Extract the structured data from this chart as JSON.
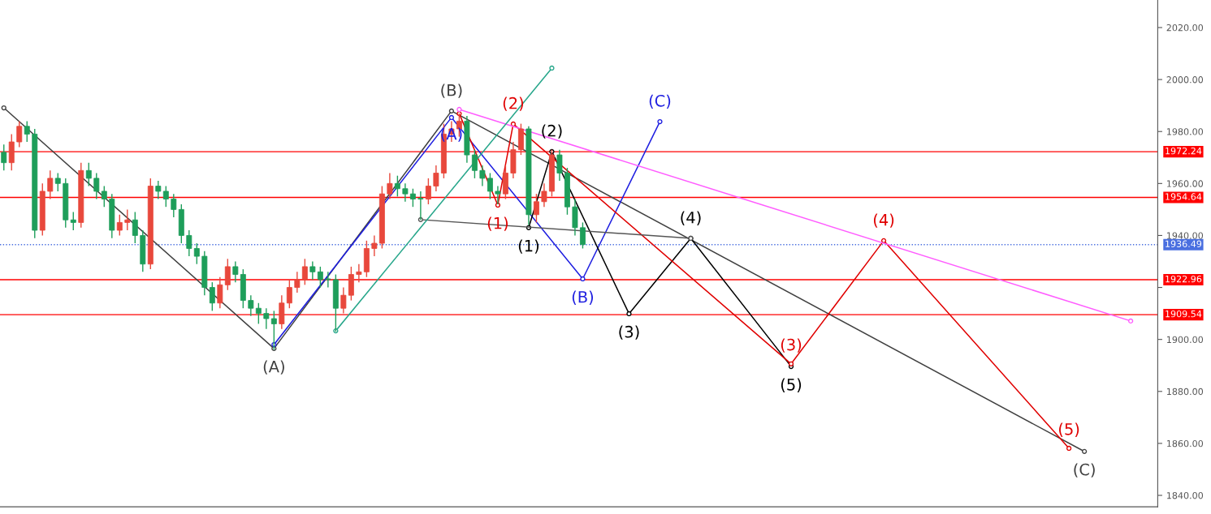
{
  "chart_data": {
    "type": "candlestick",
    "categories": [
      null,
      null,
      null,
      null,
      null,
      null,
      null,
      null,
      null,
      null,
      null,
      null,
      null,
      null,
      null,
      null,
      null,
      null,
      null,
      null,
      null,
      null,
      null,
      null,
      null,
      null,
      null,
      null,
      null,
      null,
      null,
      null,
      null,
      null,
      null,
      null,
      null,
      null,
      null,
      null,
      null,
      null,
      null,
      null,
      null,
      null,
      null,
      null,
      null,
      null,
      null,
      null,
      null,
      null,
      null,
      null,
      null,
      null,
      null,
      null,
      null,
      null,
      null,
      null,
      null,
      null,
      null,
      null,
      null,
      null,
      null,
      null,
      null,
      null,
      null,
      null,
      null,
      null,
      null,
      null,
      null,
      null,
      null,
      null,
      null,
      null,
      null,
      null,
      null,
      null,
      null,
      null,
      null,
      null,
      null,
      null,
      null,
      null,
      null,
      null,
      null,
      null,
      null,
      null,
      null,
      null,
      null,
      null,
      null,
      null,
      null,
      null,
      null,
      null,
      null,
      null,
      null,
      null,
      null,
      null,
      null,
      null,
      null,
      null,
      null,
      null,
      null,
      null,
      null,
      null,
      null,
      null,
      null,
      null,
      null,
      null,
      null,
      null,
      null,
      null,
      null,
      null,
      null,
      null,
      null,
      null,
      null,
      null,
      null,
      null
    ],
    "ohlc": [
      [
        1972,
        1975,
        1965,
        1968
      ],
      [
        1968,
        1979,
        1965,
        1976
      ],
      [
        1976,
        1984,
        1974,
        1982
      ],
      [
        1982,
        1984,
        1976,
        1979
      ],
      [
        1979,
        1981,
        1939,
        1942
      ],
      [
        1942,
        1960,
        1940,
        1957
      ],
      [
        1957,
        1965,
        1954,
        1962
      ],
      [
        1962,
        1964,
        1957,
        1960
      ],
      [
        1960,
        1962,
        1943,
        1946
      ],
      [
        1946,
        1949,
        1942,
        1945
      ],
      [
        1945,
        1968,
        1943,
        1965
      ],
      [
        1965,
        1968,
        1959,
        1962
      ],
      [
        1962,
        1964,
        1954,
        1957
      ],
      [
        1957,
        1959,
        1951,
        1954
      ],
      [
        1954,
        1956,
        1939,
        1942
      ],
      [
        1942,
        1948,
        1940,
        1945
      ],
      [
        1945,
        1950,
        1942,
        1946
      ],
      [
        1946,
        1949,
        1937,
        1940
      ],
      [
        1940,
        1942,
        1926,
        1929
      ],
      [
        1929,
        1962,
        1927,
        1959
      ],
      [
        1959,
        1961,
        1954,
        1957
      ],
      [
        1957,
        1959,
        1951,
        1954
      ],
      [
        1954,
        1956,
        1947,
        1950
      ],
      [
        1950,
        1952,
        1937,
        1940
      ],
      [
        1940,
        1942,
        1932,
        1935
      ],
      [
        1935,
        1937,
        1929,
        1932
      ],
      [
        1932,
        1934,
        1917,
        1920
      ],
      [
        1920,
        1922,
        1911,
        1914
      ],
      [
        1914,
        1924,
        1912,
        1921
      ],
      [
        1921,
        1931,
        1919,
        1928
      ],
      [
        1928,
        1930,
        1922,
        1925
      ],
      [
        1925,
        1927,
        1912,
        1915
      ],
      [
        1915,
        1917,
        1909,
        1912
      ],
      [
        1912,
        1914,
        1906,
        1910
      ],
      [
        1910,
        1912,
        1904,
        1908
      ],
      [
        1908,
        1911,
        1896,
        1906
      ],
      [
        1906,
        1917,
        1904,
        1914
      ],
      [
        1914,
        1923,
        1912,
        1920
      ],
      [
        1920,
        1926,
        1918,
        1923
      ],
      [
        1923,
        1931,
        1921,
        1928
      ],
      [
        1928,
        1930,
        1923,
        1926
      ],
      [
        1926,
        1928,
        1920,
        1923
      ],
      [
        1923,
        1926,
        1920,
        1923
      ],
      [
        1923,
        1925,
        1903,
        1912
      ],
      [
        1912,
        1920,
        1910,
        1917
      ],
      [
        1917,
        1928,
        1915,
        1925
      ],
      [
        1925,
        1929,
        1922,
        1926
      ],
      [
        1926,
        1938,
        1924,
        1935
      ],
      [
        1935,
        1940,
        1932,
        1937
      ],
      [
        1937,
        1959,
        1935,
        1956
      ],
      [
        1956,
        1964,
        1954,
        1960
      ],
      [
        1960,
        1963,
        1955,
        1958
      ],
      [
        1958,
        1960,
        1953,
        1956
      ],
      [
        1956,
        1958,
        1951,
        1954
      ],
      [
        1954,
        1957,
        1946,
        1954
      ],
      [
        1954,
        1962,
        1952,
        1959
      ],
      [
        1959,
        1967,
        1957,
        1964
      ],
      [
        1964,
        1983,
        1962,
        1979
      ],
      [
        1979,
        1984,
        1976,
        1981
      ],
      [
        1981,
        1987,
        1978,
        1984
      ],
      [
        1984,
        1986,
        1968,
        1971
      ],
      [
        1971,
        1973,
        1962,
        1965
      ],
      [
        1965,
        1967,
        1959,
        1962
      ],
      [
        1962,
        1964,
        1954,
        1957
      ],
      [
        1957,
        1959,
        1952,
        1956
      ],
      [
        1956,
        1967,
        1954,
        1964
      ],
      [
        1964,
        1976,
        1962,
        1973
      ],
      [
        1973,
        1983,
        1971,
        1981
      ],
      [
        1981,
        1982,
        1944,
        1948
      ],
      [
        1948,
        1956,
        1945,
        1953
      ],
      [
        1953,
        1960,
        1951,
        1957
      ],
      [
        1957,
        1973,
        1955,
        1971
      ],
      [
        1971,
        1973,
        1961,
        1964
      ],
      [
        1964,
        1966,
        1948,
        1951
      ],
      [
        1951,
        1954,
        1940,
        1943
      ],
      [
        1943,
        1945,
        1935,
        1936.5
      ],
      null,
      null,
      null,
      null,
      null,
      null,
      null,
      null,
      null,
      null,
      null,
      null,
      null,
      null,
      null,
      null,
      null,
      null,
      null,
      null,
      null,
      null,
      null,
      null,
      null,
      null,
      null,
      null,
      null,
      null,
      null,
      null,
      null,
      null,
      null,
      null,
      null,
      null,
      null,
      null,
      null,
      null,
      null,
      null,
      null,
      null,
      null,
      null,
      null,
      null,
      null,
      null,
      null,
      null,
      null,
      null,
      null,
      null,
      null,
      null,
      null,
      null,
      null,
      null,
      null,
      null,
      null,
      null,
      null,
      null,
      null,
      null,
      null,
      null
    ],
    "colors": [
      "#1e9e5a",
      "#e8483c",
      "#e8483c",
      "#1e9e5a",
      "#1e9e5a",
      "#e8483c",
      "#e8483c",
      "#1e9e5a",
      "#1e9e5a",
      "#1e9e5a",
      "#e8483c",
      "#1e9e5a",
      "#1e9e5a",
      "#1e9e5a",
      "#1e9e5a",
      "#e8483c",
      "#e8483c",
      "#1e9e5a",
      "#1e9e5a",
      "#e8483c",
      "#1e9e5a",
      "#1e9e5a",
      "#1e9e5a",
      "#1e9e5a",
      "#1e9e5a",
      "#1e9e5a",
      "#1e9e5a",
      "#1e9e5a",
      "#e8483c",
      "#e8483c",
      "#1e9e5a",
      "#1e9e5a",
      "#1e9e5a",
      "#1e9e5a",
      "#1e9e5a",
      "#1e9e5a",
      "#e8483c",
      "#e8483c",
      "#e8483c",
      "#e8483c",
      "#1e9e5a",
      "#1e9e5a",
      "#1e9e5a",
      "#1e9e5a",
      "#e8483c",
      "#e8483c",
      "#e8483c",
      "#e8483c",
      "#e8483c",
      "#e8483c",
      "#e8483c",
      "#1e9e5a",
      "#1e9e5a",
      "#1e9e5a",
      "#1e9e5a",
      "#e8483c",
      "#e8483c",
      "#e8483c",
      "#e8483c",
      "#e8483c",
      "#1e9e5a",
      "#1e9e5a",
      "#1e9e5a",
      "#1e9e5a",
      "#1e9e5a",
      "#e8483c",
      "#e8483c",
      "#e8483c",
      "#1e9e5a",
      "#e8483c",
      "#e8483c",
      "#e8483c",
      "#1e9e5a",
      "#1e9e5a",
      "#1e9e5a",
      "#1e9e5a",
      null,
      null,
      null,
      null,
      null,
      null,
      null,
      null,
      null,
      null,
      null,
      null,
      null,
      null,
      null,
      null,
      null,
      null,
      null,
      null,
      null,
      null,
      null,
      null,
      null,
      null,
      null,
      null,
      null,
      null,
      null,
      null,
      null,
      null,
      null,
      null,
      null,
      null,
      null,
      null,
      null,
      null,
      null,
      null,
      null,
      null,
      null,
      null,
      null,
      null,
      null,
      null,
      null,
      null,
      null,
      null,
      null,
      null,
      null,
      null,
      null,
      null,
      null,
      null,
      null,
      null,
      null,
      null,
      null,
      null,
      null,
      null,
      null,
      null
    ],
    "series": [
      {
        "type": "line",
        "color": "#404040",
        "values": [
          1989.1,
          null,
          null,
          null,
          null,
          null,
          null,
          null,
          null,
          null,
          null,
          null,
          null,
          null,
          null,
          null,
          null,
          null,
          null,
          null,
          null,
          null,
          null,
          null,
          null,
          null,
          null,
          null,
          null,
          null,
          null,
          null,
          null,
          null,
          null,
          1896.5,
          null,
          null,
          null,
          null,
          null,
          null,
          null,
          null,
          null,
          null,
          null,
          null,
          null,
          null,
          null,
          null,
          null,
          null,
          null,
          null,
          null,
          null,
          1987.9,
          null,
          null,
          null,
          null,
          null,
          null,
          null,
          null,
          null,
          null,
          null,
          null,
          null,
          null,
          null,
          null,
          null,
          null,
          null,
          null,
          null,
          null,
          null,
          null,
          null,
          null,
          null,
          null,
          null,
          null,
          null,
          null,
          null,
          null,
          null,
          null,
          null,
          null,
          null,
          null,
          null,
          null,
          null,
          null,
          null,
          null,
          null,
          null,
          null,
          null,
          null,
          null,
          null,
          null,
          null,
          null,
          null,
          null,
          null,
          null,
          null,
          null,
          null,
          null,
          null,
          null,
          null,
          null,
          null,
          null,
          null,
          null,
          null,
          null,
          null,
          null,
          null,
          null,
          null,
          null,
          null,
          1856.9,
          null,
          null,
          null,
          null,
          null,
          null,
          null,
          null,
          null
        ]
      },
      {
        "type": "line",
        "color": "#1f1fe0",
        "values": [
          null,
          null,
          null,
          null,
          null,
          null,
          null,
          null,
          null,
          null,
          null,
          null,
          null,
          null,
          null,
          null,
          null,
          null,
          null,
          null,
          null,
          null,
          null,
          null,
          null,
          null,
          null,
          null,
          null,
          null,
          null,
          null,
          null,
          null,
          null,
          1898.0,
          null,
          null,
          null,
          null,
          null,
          null,
          null,
          null,
          null,
          null,
          null,
          null,
          null,
          null,
          null,
          null,
          null,
          null,
          null,
          null,
          null,
          null,
          1985.4,
          null,
          null,
          null,
          null,
          null,
          null,
          null,
          null,
          null,
          null,
          null,
          null,
          null,
          null,
          null,
          null,
          1923.3,
          null,
          null,
          null,
          null,
          null,
          null,
          null,
          null,
          null,
          1983.8,
          null,
          null,
          null,
          null,
          null,
          null,
          null,
          null,
          null,
          null,
          null,
          null,
          null,
          null,
          null,
          null,
          null,
          null,
          null,
          null,
          null,
          null,
          null,
          null,
          null,
          null,
          null,
          null,
          null,
          null,
          null,
          null,
          null,
          null,
          null,
          null,
          null,
          null,
          null,
          null,
          null,
          null,
          null,
          null,
          null,
          null,
          null,
          null,
          null,
          null,
          null,
          null,
          null,
          null,
          null,
          null,
          null,
          null,
          null,
          null,
          null,
          null,
          null,
          null
        ]
      },
      {
        "type": "line",
        "color": "#000000",
        "values": [
          null,
          null,
          null,
          null,
          null,
          null,
          null,
          null,
          null,
          null,
          null,
          null,
          null,
          null,
          null,
          null,
          null,
          null,
          null,
          null,
          null,
          null,
          null,
          null,
          null,
          null,
          null,
          null,
          null,
          null,
          null,
          null,
          null,
          null,
          null,
          null,
          null,
          null,
          null,
          null,
          null,
          null,
          null,
          null,
          null,
          null,
          null,
          null,
          null,
          null,
          null,
          null,
          null,
          null,
          null,
          null,
          null,
          null,
          null,
          null,
          null,
          null,
          null,
          null,
          null,
          null,
          null,
          null,
          1943.0,
          null,
          null,
          1972.3,
          null,
          null,
          null,
          null,
          null,
          null,
          null,
          null,
          null,
          1909.9,
          null,
          null,
          null,
          null,
          null,
          null,
          null,
          1938.9,
          null,
          null,
          null,
          null,
          null,
          null,
          null,
          null,
          null,
          null,
          null,
          null,
          1889.6,
          null,
          null,
          null,
          null,
          null,
          null,
          null,
          null,
          null,
          null,
          null,
          null,
          null,
          null,
          null,
          null,
          null,
          null,
          null,
          null,
          null,
          null,
          null,
          null,
          null,
          null,
          null,
          null,
          null,
          null,
          null,
          null,
          null,
          null,
          null,
          null,
          null,
          null,
          null,
          null,
          null,
          null,
          null,
          null,
          null,
          null,
          null
        ]
      },
      {
        "type": "line",
        "color": "#e00000",
        "values": [
          null,
          null,
          null,
          null,
          null,
          null,
          null,
          null,
          null,
          null,
          null,
          null,
          null,
          null,
          null,
          null,
          null,
          null,
          null,
          null,
          null,
          null,
          null,
          null,
          null,
          null,
          null,
          null,
          null,
          null,
          null,
          null,
          null,
          null,
          null,
          null,
          null,
          null,
          null,
          null,
          null,
          null,
          null,
          null,
          null,
          null,
          null,
          null,
          null,
          null,
          null,
          null,
          null,
          null,
          null,
          null,
          null,
          null,
          null,
          1986.9,
          null,
          null,
          null,
          null,
          1951.7,
          null,
          1982.9,
          null,
          null,
          null,
          null,
          null,
          null,
          null,
          null,
          null,
          null,
          null,
          null,
          null,
          null,
          null,
          null,
          null,
          null,
          null,
          null,
          null,
          null,
          null,
          null,
          null,
          null,
          null,
          null,
          null,
          null,
          null,
          null,
          null,
          null,
          null,
          1890.6,
          null,
          null,
          null,
          null,
          null,
          null,
          null,
          null,
          null,
          null,
          null,
          1938.0,
          null,
          null,
          null,
          null,
          null,
          null,
          null,
          null,
          null,
          null,
          null,
          null,
          null,
          null,
          null,
          null,
          null,
          null,
          null,
          null,
          null,
          null,
          null,
          1858.1,
          null,
          null,
          null,
          null,
          null,
          null,
          null,
          null,
          null,
          null,
          null
        ]
      },
      {
        "type": "line",
        "color": "#ff5cff",
        "values": [
          null,
          null,
          null,
          null,
          null,
          null,
          null,
          null,
          null,
          null,
          null,
          null,
          null,
          null,
          null,
          null,
          null,
          null,
          null,
          null,
          null,
          null,
          null,
          null,
          null,
          null,
          null,
          null,
          null,
          null,
          null,
          null,
          null,
          null,
          null,
          null,
          null,
          null,
          null,
          null,
          null,
          null,
          null,
          null,
          null,
          null,
          null,
          null,
          null,
          null,
          null,
          null,
          null,
          null,
          null,
          null,
          null,
          null,
          null,
          1988.5,
          null,
          null,
          null,
          null,
          null,
          null,
          null,
          null,
          null,
          null,
          null,
          null,
          null,
          null,
          null,
          null,
          null,
          null,
          null,
          null,
          null,
          null,
          null,
          null,
          null,
          null,
          null,
          null,
          null,
          null,
          null,
          null,
          null,
          null,
          null,
          null,
          null,
          null,
          null,
          null,
          null,
          null,
          null,
          null,
          null,
          null,
          null,
          null,
          null,
          null,
          null,
          null,
          null,
          null,
          null,
          null,
          null,
          null,
          null,
          null,
          null,
          null,
          null,
          null,
          null,
          null,
          null,
          null,
          null,
          null,
          null,
          null,
          null,
          null,
          null,
          null,
          null,
          null,
          null,
          null,
          null,
          null,
          null,
          null,
          null,
          null,
          1907.1,
          null,
          null,
          null
        ]
      },
      {
        "type": "line",
        "color": "#555555",
        "values": [
          null,
          null,
          null,
          null,
          null,
          null,
          null,
          null,
          null,
          null,
          null,
          null,
          null,
          null,
          null,
          null,
          null,
          null,
          null,
          null,
          null,
          null,
          null,
          null,
          null,
          null,
          null,
          null,
          null,
          null,
          null,
          null,
          null,
          null,
          null,
          null,
          null,
          null,
          null,
          null,
          null,
          null,
          null,
          null,
          null,
          null,
          null,
          null,
          null,
          null,
          null,
          null,
          null,
          null,
          1946.1,
          null,
          null,
          null,
          null,
          null,
          null,
          null,
          null,
          null,
          null,
          null,
          null,
          null,
          null,
          null,
          null,
          null,
          null,
          null,
          null,
          null,
          null,
          null,
          null,
          null,
          null,
          null,
          null,
          null,
          null,
          null,
          null,
          null,
          null,
          1938.9,
          null,
          null,
          null,
          null,
          null,
          null,
          null,
          null,
          null,
          null,
          null,
          null,
          null,
          null,
          null,
          null,
          null,
          null,
          null,
          null,
          null,
          null,
          null,
          null,
          null,
          null,
          null,
          null,
          null,
          null,
          null,
          null,
          null,
          null,
          null,
          null,
          null,
          null,
          null,
          null,
          null,
          null,
          null,
          null,
          null,
          null,
          null,
          null,
          null,
          null,
          null,
          null,
          null,
          null,
          null,
          null,
          null,
          null,
          null,
          null
        ]
      },
      {
        "type": "line",
        "color": "#26a68a",
        "values": [
          null,
          null,
          null,
          null,
          null,
          null,
          null,
          null,
          null,
          null,
          null,
          null,
          null,
          null,
          null,
          null,
          null,
          null,
          null,
          null,
          null,
          null,
          null,
          null,
          null,
          null,
          null,
          null,
          null,
          null,
          null,
          null,
          null,
          null,
          null,
          null,
          null,
          null,
          null,
          null,
          null,
          null,
          null,
          1903.3,
          null,
          null,
          null,
          null,
          null,
          null,
          null,
          null,
          null,
          null,
          null,
          null,
          null,
          null,
          null,
          null,
          null,
          null,
          null,
          null,
          null,
          null,
          null,
          null,
          null,
          null,
          null,
          2004.4,
          null,
          null,
          null,
          null,
          null,
          null,
          null,
          null,
          null,
          null,
          null,
          null,
          null,
          null,
          null,
          null,
          null,
          null,
          null,
          null,
          null,
          null,
          null,
          null,
          null,
          null,
          null,
          null,
          null,
          null,
          null,
          null,
          null,
          null,
          null,
          null,
          null,
          null,
          null,
          null,
          null,
          null,
          null,
          null,
          null,
          null,
          null,
          null,
          null,
          null,
          null,
          null,
          null,
          null,
          null,
          null,
          null,
          null,
          null,
          null,
          null,
          null,
          null,
          null,
          null,
          null,
          null,
          null,
          null,
          null,
          null,
          null,
          null,
          null,
          null,
          null,
          null,
          null
        ]
      }
    ],
    "annotations": [
      {
        "text": "(A)",
        "y": 1896.5
      },
      {
        "text": "(B)",
        "y": 1987.9
      },
      {
        "text": "(C)",
        "y": 1856.9
      },
      {
        "text": "(A)",
        "y": 1985.4
      },
      {
        "text": "(B)",
        "y": 1923.3
      },
      {
        "text": "(C)",
        "y": 1983.8
      },
      {
        "text": "(1)",
        "y": 1943.0
      },
      {
        "text": "(2)",
        "y": 1972.3
      },
      {
        "text": "(3)",
        "y": 1909.9
      },
      {
        "text": "(4)",
        "y": 1938.9
      },
      {
        "text": "(5)",
        "y": 1889.6
      },
      {
        "text": "(1)",
        "y": 1951.7
      },
      {
        "text": "(2)",
        "y": 1982.9
      },
      {
        "text": "(3)",
        "y": 1890.6
      },
      {
        "text": "(4)",
        "y": 1938.0
      },
      {
        "text": "(5)",
        "y": 1858.1
      }
    ],
    "marker": "circle",
    "ylim": [
      1835.6,
      2030.6
    ],
    "yticks": [
      {
        "value": 1840,
        "label": "1840.00"
      },
      {
        "value": 1860,
        "label": "1860.00"
      },
      {
        "value": 1880,
        "label": "1880.00"
      },
      {
        "value": 1900,
        "label": "1900.00"
      },
      {
        "value": 1920,
        "label": null
      },
      {
        "value": 1940,
        "label": "1940.00"
      },
      {
        "value": 1960,
        "label": "1960.00"
      },
      {
        "value": 1980,
        "label": "1980.00"
      },
      {
        "value": 2000,
        "label": "2000.00"
      },
      {
        "value": 2020,
        "label": "2020.00"
      }
    ],
    "tick_labels": "y",
    "ref_lines": [
      {
        "axis": "y",
        "value": 1972.24,
        "label": "1972.24",
        "color": "#ff0000",
        "line_style": "solid"
      },
      {
        "axis": "y",
        "value": 1954.64,
        "label": "1954.64",
        "color": "#ff0000",
        "line_style": "solid"
      },
      {
        "axis": "y",
        "value": 1936.49,
        "label": "1936.49",
        "color": "#4a6fe0",
        "line_style": "dotted"
      },
      {
        "axis": "y",
        "value": 1922.96,
        "label": "1922.96",
        "color": "#ff0000",
        "line_style": "solid"
      },
      {
        "axis": "y",
        "value": 1909.54,
        "label": "1909.54",
        "color": "#ff0000",
        "line_style": "solid"
      }
    ]
  }
}
